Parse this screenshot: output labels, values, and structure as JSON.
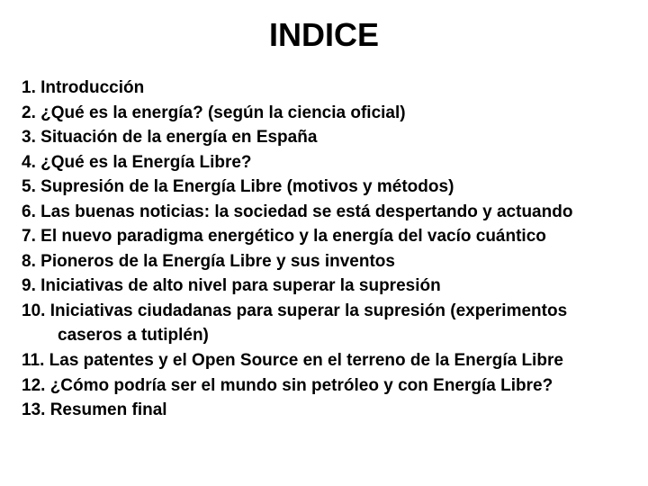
{
  "title": "INDICE",
  "title_color": "#000000",
  "text_color": "#000000",
  "background_color": "#ffffff",
  "title_fontsize": 36,
  "body_fontsize": 19,
  "font_family": "Arial",
  "items": [
    {
      "num": "1.",
      "text": "Introducción"
    },
    {
      "num": "2.",
      "text": "¿Qué es la energía? (según la ciencia oficial)"
    },
    {
      "num": "3.",
      "text": "Situación de la energía en España"
    },
    {
      "num": "4.",
      "text": "¿Qué es la Energía Libre?"
    },
    {
      "num": "5.",
      "text": "Supresión de la Energía Libre (motivos y métodos)"
    },
    {
      "num": "6.",
      "text": "Las buenas noticias: la sociedad se está despertando y actuando"
    },
    {
      "num": "7.",
      "text": "El nuevo paradigma energético y la energía del vacío cuántico"
    },
    {
      "num": "8.",
      "text": "Pioneros de la Energía Libre y sus inventos"
    },
    {
      "num": "9.",
      "text": "Iniciativas de alto nivel para superar la supresión"
    },
    {
      "num": "10.",
      "text": "Iniciativas ciudadanas para superar la supresión (experimentos",
      "cont": "caseros a tutiplén)"
    },
    {
      "num": "11.",
      "text": "Las patentes y el Open Source en el terreno de la Energía Libre"
    },
    {
      "num": "12.",
      "text": "¿Cómo podría ser el mundo sin petróleo y con Energía Libre?"
    },
    {
      "num": "13.",
      "text": "Resumen final"
    }
  ]
}
